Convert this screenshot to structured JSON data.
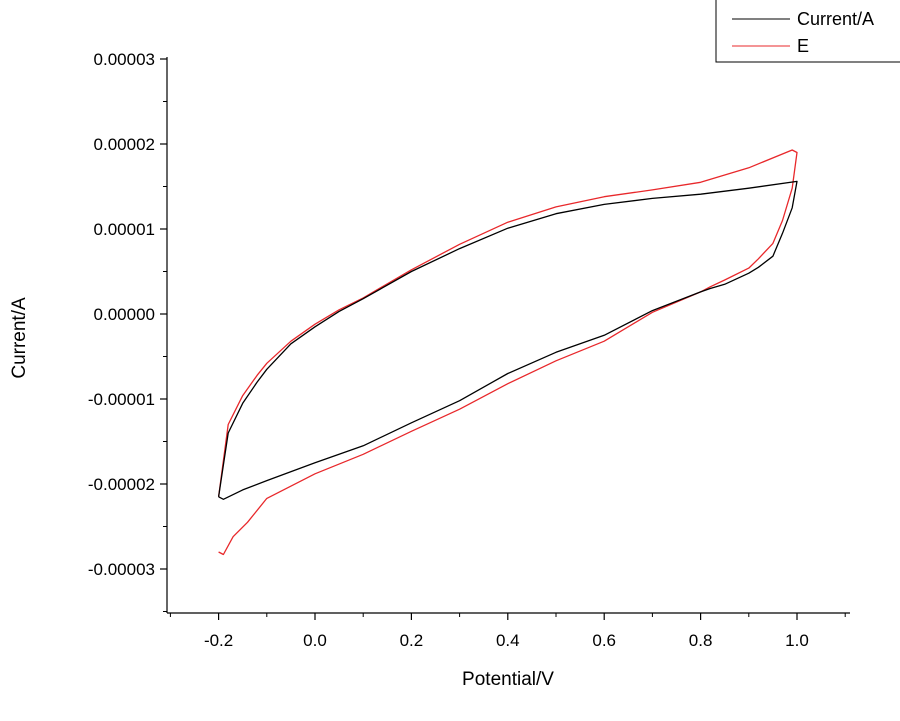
{
  "chart_data": {
    "type": "line",
    "title": "",
    "xlabel": "Potential/V",
    "ylabel": "Current/A",
    "xlim": [
      -0.3,
      1.1
    ],
    "ylim": [
      -3.5e-05,
      3e-05
    ],
    "xticks": [
      -0.2,
      0.0,
      0.2,
      0.4,
      0.6,
      0.8,
      1.0
    ],
    "xtick_labels": [
      "-0.2",
      "0.0",
      "0.2",
      "0.4",
      "0.6",
      "0.8",
      "1.0"
    ],
    "yticks": [
      3e-05,
      2e-05,
      1e-05,
      0.0,
      -1e-05,
      -2e-05,
      -3e-05
    ],
    "ytick_labels": [
      "0.00003",
      "0.00002",
      "0.00001",
      "0.00000",
      "-0.00001",
      "-0.00002",
      "-0.00003"
    ],
    "grid": false,
    "legend_position": "top-right",
    "series": [
      {
        "name": "Current/A",
        "color": "#000000",
        "x": [
          -0.2,
          -0.18,
          -0.15,
          -0.12,
          -0.1,
          -0.05,
          0.0,
          0.05,
          0.1,
          0.2,
          0.3,
          0.4,
          0.5,
          0.6,
          0.7,
          0.8,
          0.9,
          1.0,
          0.99,
          0.97,
          0.95,
          0.92,
          0.9,
          0.85,
          0.82,
          0.8,
          0.7,
          0.6,
          0.5,
          0.4,
          0.3,
          0.2,
          0.1,
          0.0,
          -0.1,
          -0.15,
          -0.19,
          -0.2
        ],
        "y": [
          -2.15e-05,
          -1.4e-05,
          -1.05e-05,
          -8e-06,
          -6.5e-06,
          -3.5e-06,
          -1.5e-06,
          3e-07,
          1.8e-06,
          5e-06,
          7.7e-06,
          1.01e-05,
          1.18e-05,
          1.29e-05,
          1.36e-05,
          1.41e-05,
          1.48e-05,
          1.56e-05,
          1.25e-05,
          9.5e-06,
          6.8e-06,
          5.5e-06,
          4.8e-06,
          3.5e-06,
          3e-06,
          2.6e-06,
          4e-07,
          -2.5e-06,
          -4.5e-06,
          -7e-06,
          -1.02e-05,
          -1.28e-05,
          -1.55e-05,
          -1.75e-05,
          -1.96e-05,
          -2.07e-05,
          -2.18e-05,
          -2.15e-05
        ]
      },
      {
        "name": "E",
        "color": "#e8282b",
        "x": [
          -0.2,
          -0.18,
          -0.15,
          -0.12,
          -0.1,
          -0.05,
          0.0,
          0.05,
          0.1,
          0.2,
          0.3,
          0.4,
          0.5,
          0.6,
          0.7,
          0.8,
          0.9,
          0.99,
          1.0,
          0.99,
          0.97,
          0.95,
          0.92,
          0.9,
          0.85,
          0.82,
          0.8,
          0.7,
          0.6,
          0.5,
          0.4,
          0.3,
          0.2,
          0.1,
          0.0,
          -0.1,
          -0.14,
          -0.17,
          -0.19,
          -0.2
        ],
        "y": [
          -2.15e-05,
          -1.3e-05,
          -9.6e-06,
          -7.2e-06,
          -5.8e-06,
          -3.2e-06,
          -1.2e-06,
          5e-07,
          1.9e-06,
          5.2e-06,
          8.2e-06,
          1.08e-05,
          1.26e-05,
          1.38e-05,
          1.46e-05,
          1.55e-05,
          1.72e-05,
          1.93e-05,
          1.9e-05,
          1.48e-05,
          1.1e-05,
          8.3e-06,
          6.5e-06,
          5.4e-06,
          4e-06,
          3.2e-06,
          2.6e-06,
          2e-07,
          -3.2e-06,
          -5.5e-06,
          -8.2e-06,
          -1.12e-05,
          -1.38e-05,
          -1.65e-05,
          -1.88e-05,
          -2.17e-05,
          -2.45e-05,
          -2.62e-05,
          -2.83e-05,
          -2.8e-05
        ]
      }
    ]
  }
}
